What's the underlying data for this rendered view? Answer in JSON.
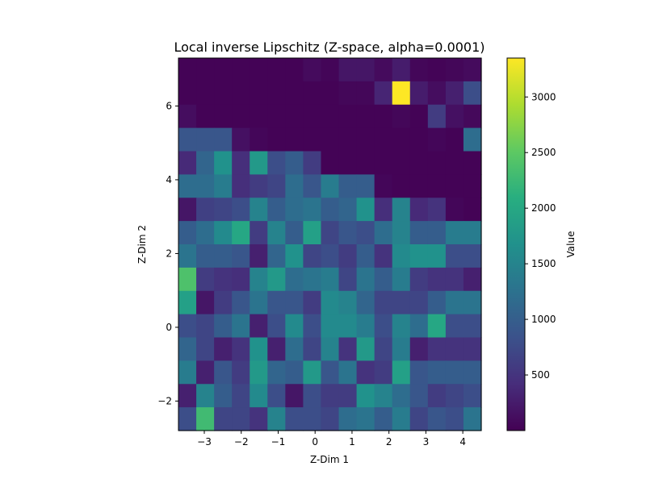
{
  "chart_data": {
    "type": "heatmap",
    "title": "Local inverse Lipschitz (Z-space, alpha=0.0001)",
    "xlabel": "Z-Dim 1",
    "ylabel": "Z-Dim 2",
    "xlim": [
      -3.7,
      4.5
    ],
    "ylim": [
      -2.8,
      7.3
    ],
    "x_ticks": [
      -3,
      -2,
      -1,
      0,
      1,
      2,
      3,
      4
    ],
    "x_tick_labels": [
      "−3",
      "−2",
      "−1",
      "0",
      "1",
      "2",
      "3",
      "4"
    ],
    "y_ticks": [
      -2,
      0,
      2,
      4,
      6
    ],
    "y_tick_labels": [
      "−2",
      "0",
      "2",
      "4",
      "6"
    ],
    "colorbar": {
      "label": "Value",
      "colormap": "viridis",
      "vmin": 0,
      "vmax": 3350,
      "ticks": [
        500,
        1000,
        1500,
        2000,
        2500,
        3000
      ],
      "tick_labels": [
        "500",
        "1000",
        "1500",
        "2000",
        "2500",
        "3000"
      ]
    },
    "grid": false,
    "rows_order": "top-to-bottom",
    "values": [
      [
        20,
        20,
        20,
        20,
        20,
        20,
        20,
        100,
        40,
        200,
        200,
        100,
        260,
        60,
        30,
        60,
        100
      ],
      [
        20,
        20,
        20,
        20,
        20,
        20,
        20,
        20,
        20,
        60,
        60,
        350,
        3350,
        260,
        120,
        300,
        800
      ],
      [
        120,
        20,
        20,
        20,
        20,
        20,
        20,
        20,
        20,
        20,
        20,
        20,
        60,
        20,
        600,
        150,
        80
      ],
      [
        900,
        900,
        900,
        150,
        50,
        20,
        20,
        20,
        20,
        20,
        20,
        20,
        20,
        20,
        50,
        20,
        1200
      ],
      [
        400,
        1100,
        1700,
        450,
        1800,
        800,
        1000,
        600,
        20,
        20,
        20,
        20,
        20,
        20,
        20,
        20,
        20
      ],
      [
        1200,
        1200,
        1400,
        450,
        600,
        700,
        1200,
        900,
        1400,
        1000,
        1000,
        50,
        20,
        20,
        20,
        20,
        20
      ],
      [
        200,
        650,
        700,
        800,
        1500,
        1000,
        1200,
        1300,
        1000,
        1100,
        1700,
        450,
        1500,
        400,
        500,
        50,
        20
      ],
      [
        1000,
        1200,
        1600,
        2000,
        600,
        1500,
        1000,
        1900,
        700,
        900,
        800,
        1200,
        1500,
        1000,
        1000,
        1400,
        1400
      ],
      [
        1300,
        1000,
        1000,
        900,
        300,
        1100,
        1700,
        700,
        800,
        600,
        1000,
        500,
        1600,
        1700,
        1700,
        800,
        800
      ],
      [
        2400,
        600,
        500,
        450,
        1500,
        1800,
        1200,
        1300,
        1400,
        700,
        1300,
        1000,
        1400,
        600,
        500,
        500,
        300
      ],
      [
        1900,
        200,
        600,
        900,
        1300,
        900,
        900,
        600,
        1600,
        1500,
        1100,
        700,
        700,
        700,
        1000,
        1300,
        1300
      ],
      [
        800,
        700,
        1000,
        1300,
        300,
        800,
        1600,
        800,
        1600,
        1600,
        1400,
        800,
        1500,
        1200,
        2000,
        800,
        800
      ],
      [
        1100,
        700,
        300,
        500,
        1700,
        300,
        1200,
        700,
        1500,
        500,
        1800,
        700,
        1400,
        300,
        500,
        500,
        500
      ],
      [
        1400,
        300,
        900,
        600,
        1800,
        1100,
        1000,
        1800,
        900,
        1300,
        500,
        600,
        1900,
        900,
        1000,
        1000,
        1000
      ],
      [
        300,
        1500,
        1000,
        700,
        1600,
        800,
        200,
        800,
        600,
        600,
        1700,
        1500,
        1200,
        900,
        600,
        700,
        800
      ],
      [
        800,
        2300,
        700,
        700,
        500,
        1500,
        800,
        800,
        700,
        1200,
        1300,
        1000,
        1400,
        700,
        900,
        800,
        1300
      ]
    ]
  }
}
